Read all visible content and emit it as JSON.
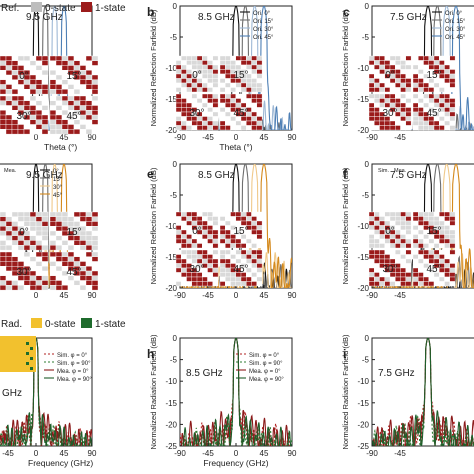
{
  "figure": {
    "top_legend": {
      "prefix": "Ref.",
      "items": [
        {
          "label": "0-state",
          "color": "#bdbdbd"
        },
        {
          "label": "1-state",
          "color": "#9b1b1b"
        }
      ]
    },
    "bottom_legend": {
      "prefix": "Rad.",
      "items": [
        {
          "label": "0-state",
          "color": "#f2c12e"
        },
        {
          "label": "1-state",
          "color": "#1e6b2c"
        }
      ]
    },
    "panel_letters": [
      "b",
      "c",
      "e",
      "f",
      "h",
      "i"
    ],
    "row_labels": {
      "reflection_ylabel": "Normalized Reflection Farfield (dB)",
      "radiation_ylabel": "Normalized Radiation Farfield (dB)",
      "theta_xlabel": "Theta (°)",
      "freq_xlabel": "Frequency (GHz)"
    },
    "inset_angles": [
      "0°",
      "15°",
      "30°",
      "45°"
    ],
    "partial_text": {
      "ghz_cut": "GHz"
    }
  },
  "chart_data": [
    {
      "id": "a",
      "type": "line",
      "frequency_label": "9.5 GHz",
      "xlabel": "Theta (°)",
      "ylabel": "",
      "xlim": [
        -90,
        90
      ],
      "ylim": [
        -20,
        0
      ],
      "xticks": [
        "0",
        "45",
        "90"
      ],
      "yticks": [],
      "series": [
        {
          "name": "Ori. 0°",
          "color": "#111111",
          "peak": 0,
          "width": 8,
          "side": -16
        },
        {
          "name": "Ori. 15°",
          "color": "#6e6e6e",
          "peak": 15,
          "width": 8,
          "side": -16
        },
        {
          "name": "Ori. 30°",
          "color": "#9fb9d6",
          "peak": 30,
          "width": 8,
          "side": -15
        },
        {
          "name": "Ori. 45°",
          "color": "#4d7fb5",
          "peak": 45,
          "width": 8,
          "side": -15
        }
      ]
    },
    {
      "id": "b",
      "type": "line",
      "frequency_label": "8.5 GHz",
      "xlabel": "Theta (°)",
      "ylabel": "Normalized Reflection Farfield (dB)",
      "xlim": [
        -90,
        90
      ],
      "ylim": [
        -20,
        0
      ],
      "xticks": [
        "-90",
        "-45",
        "0",
        "45",
        "90"
      ],
      "yticks": [
        "0",
        "-5",
        "-10",
        "-15",
        "-20"
      ],
      "legend": [
        "Ori. 0°",
        "Ori. 15°",
        "Ori. 30°",
        "Ori. 45°"
      ],
      "series": [
        {
          "name": "Ori. 0°",
          "color": "#111111",
          "peak": 0,
          "width": 9,
          "side": -16
        },
        {
          "name": "Ori. 15°",
          "color": "#6e6e6e",
          "peak": 15,
          "width": 9,
          "side": -16
        },
        {
          "name": "Ori. 30°",
          "color": "#9fb9d6",
          "peak": 30,
          "width": 9,
          "side": -15
        },
        {
          "name": "Ori. 45°",
          "color": "#4d7fb5",
          "peak": 45,
          "width": 9,
          "side": -15
        }
      ]
    },
    {
      "id": "c",
      "type": "line",
      "frequency_label": "7.5 GHz",
      "xlabel": "",
      "ylabel": "Normalized Reflection Farfield (dB)",
      "xlim": [
        -90,
        90
      ],
      "ylim": [
        -20,
        0
      ],
      "xticks": [
        "-90",
        "-45"
      ],
      "yticks": [
        "0",
        "-5",
        "-10",
        "-15",
        "-20"
      ],
      "legend": [
        "Ori. 0°",
        "Ori. 15°",
        "Ori. 30°",
        "Ori. 45°"
      ],
      "series": [
        {
          "name": "Ori. 0°",
          "color": "#111111",
          "peak": 0,
          "width": 10,
          "side": -16
        },
        {
          "name": "Ori. 15°",
          "color": "#6e6e6e",
          "peak": 15,
          "width": 10,
          "side": -16
        },
        {
          "name": "Ori. 30°",
          "color": "#9fb9d6",
          "peak": 30,
          "width": 10,
          "side": -15
        },
        {
          "name": "Ori. 45°",
          "color": "#4d7fb5",
          "peak": 45,
          "width": 10,
          "side": -15
        }
      ]
    },
    {
      "id": "d",
      "type": "line",
      "frequency_label": "9.5 GHz",
      "xlabel": "",
      "ylabel": "",
      "xlim": [
        -90,
        90
      ],
      "ylim": [
        -20,
        0
      ],
      "xticks": [
        "0",
        "45",
        "90"
      ],
      "yticks": [],
      "legend_header": [
        "Mea."
      ],
      "legend": [
        "0°",
        "15°",
        "30°",
        "45°"
      ],
      "series": [
        {
          "name": "0°",
          "color": "#111111",
          "peak": 0,
          "width": 8,
          "side": -14
        },
        {
          "name": "15°",
          "color": "#6e6e6e",
          "peak": 15,
          "width": 8,
          "side": -14
        },
        {
          "name": "30°",
          "color": "#f0c98a",
          "peak": 30,
          "width": 8,
          "side": -13
        },
        {
          "name": "45°",
          "color": "#d4891c",
          "peak": 45,
          "width": 8,
          "side": -13
        }
      ]
    },
    {
      "id": "e",
      "type": "line",
      "frequency_label": "8.5 GHz",
      "xlabel": "",
      "ylabel": "Normalized Reflection Farfield (dB)",
      "xlim": [
        -90,
        90
      ],
      "ylim": [
        -20,
        0
      ],
      "xticks": [
        "-90",
        "-45",
        "0",
        "45",
        "90"
      ],
      "yticks": [
        "0",
        "-5",
        "-10",
        "-15",
        "-20"
      ],
      "series": [
        {
          "name": "0°",
          "color": "#111111",
          "peak": 0,
          "width": 9,
          "side": -14
        },
        {
          "name": "15°",
          "color": "#6e6e6e",
          "peak": 15,
          "width": 9,
          "side": -14
        },
        {
          "name": "30°",
          "color": "#f0c98a",
          "peak": 30,
          "width": 9,
          "side": -13
        },
        {
          "name": "45°",
          "color": "#d4891c",
          "peak": 45,
          "width": 9,
          "side": -13
        }
      ]
    },
    {
      "id": "f",
      "type": "line",
      "frequency_label": "7.5 GHz",
      "xlabel": "",
      "ylabel": "Normalized Reflection Farfield (dB)",
      "xlim": [
        -90,
        90
      ],
      "ylim": [
        -20,
        0
      ],
      "xticks": [
        "-90",
        "-45"
      ],
      "yticks": [
        "0",
        "-5",
        "-10",
        "-15",
        "-20"
      ],
      "legend_header": [
        "Sim.",
        "Mea."
      ],
      "series": [
        {
          "name": "0°",
          "color": "#111111",
          "peak": 0,
          "width": 10,
          "side": -14
        },
        {
          "name": "15°",
          "color": "#6e6e6e",
          "peak": 15,
          "width": 10,
          "side": -14
        },
        {
          "name": "30°",
          "color": "#f0c98a",
          "peak": 30,
          "width": 10,
          "side": -13
        },
        {
          "name": "45°",
          "color": "#d4891c",
          "peak": 45,
          "width": 10,
          "side": -13
        }
      ]
    },
    {
      "id": "g",
      "type": "line",
      "frequency_label": "",
      "xlabel": "Frequency (GHz)",
      "ylabel": "",
      "xlim": [
        -90,
        90
      ],
      "ylim": [
        -25,
        0
      ],
      "xticks": [
        "-45",
        "0",
        "45",
        "90"
      ],
      "yticks": [],
      "legend": [
        "Sim. φ = 0°",
        "Sim. φ = 90°",
        "Mea. φ = 0°",
        "Mea. φ = 90°"
      ],
      "series": [
        {
          "name": "Sim. φ = 0°",
          "color": "#b22222",
          "dash": "2,2",
          "peak": 0,
          "width": 6,
          "side": -17
        },
        {
          "name": "Sim. φ = 90°",
          "color": "#2e7d32",
          "dash": "2,2",
          "peak": 0,
          "width": 6,
          "side": -18
        },
        {
          "name": "Mea. φ = 0°",
          "color": "#8b1a1a",
          "peak": 0,
          "width": 6,
          "side": -16
        },
        {
          "name": "Mea. φ = 90°",
          "color": "#1e5e2a",
          "peak": 0,
          "width": 6,
          "side": -17
        }
      ]
    },
    {
      "id": "h",
      "type": "line",
      "frequency_label": "8.5 GHz",
      "xlabel": "Frequency (GHz)",
      "ylabel": "Normalized Radiation Farfield (dB)",
      "xlim": [
        -90,
        90
      ],
      "ylim": [
        -25,
        0
      ],
      "xticks": [
        "-90",
        "-45",
        "0",
        "45",
        "90"
      ],
      "yticks": [
        "0",
        "-5",
        "-10",
        "-15",
        "-20",
        "-25"
      ],
      "legend": [
        "Sim. φ = 0°",
        "Sim. φ = 90°",
        "Mea. φ = 0°",
        "Mea. φ = 90°"
      ],
      "series": [
        {
          "name": "Sim. φ = 0°",
          "color": "#b22222",
          "dash": "2,2",
          "peak": 0,
          "width": 7,
          "side": -17
        },
        {
          "name": "Sim. φ = 90°",
          "color": "#2e7d32",
          "dash": "2,2",
          "peak": 0,
          "width": 7,
          "side": -18
        },
        {
          "name": "Mea. φ = 0°",
          "color": "#8b1a1a",
          "peak": 0,
          "width": 7,
          "side": -16
        },
        {
          "name": "Mea. φ = 90°",
          "color": "#1e5e2a",
          "peak": 0,
          "width": 7,
          "side": -17
        }
      ]
    },
    {
      "id": "i",
      "type": "line",
      "frequency_label": "7.5 GHz",
      "xlabel": "",
      "ylabel": "Normalized Radiation Farfield (dB)",
      "xlim": [
        -90,
        90
      ],
      "ylim": [
        -25,
        0
      ],
      "xticks": [
        "-90",
        "-45"
      ],
      "yticks": [
        "0",
        "-5",
        "-10",
        "-15",
        "-20",
        "-25"
      ],
      "series": [
        {
          "name": "Sim. φ = 0°",
          "color": "#b22222",
          "dash": "2,2",
          "peak": 0,
          "width": 8,
          "side": -17
        },
        {
          "name": "Sim. φ = 90°",
          "color": "#2e7d32",
          "dash": "2,2",
          "peak": 0,
          "width": 8,
          "side": -18
        },
        {
          "name": "Mea. φ = 0°",
          "color": "#8b1a1a",
          "peak": 0,
          "width": 8,
          "side": -16
        },
        {
          "name": "Mea. φ = 90°",
          "color": "#1e5e2a",
          "peak": 0,
          "width": 8,
          "side": -17
        }
      ]
    }
  ]
}
